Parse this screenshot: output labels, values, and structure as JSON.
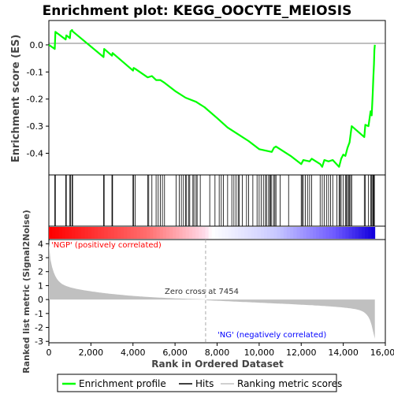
{
  "chart_data": {
    "type": "line",
    "title": "Enrichment plot: KEGG_OOCYTE_MEIOSIS",
    "xlabel": "Rank in Ordered Dataset",
    "ylabel_top": "Enrichment score (ES)",
    "ylabel_bottom": "Ranked list metric (Signal2Noise)",
    "xlim": [
      0,
      16000
    ],
    "es_ylim": [
      -0.48,
      0.09
    ],
    "metric_ylim": [
      -3.1,
      4.3
    ],
    "x_ticks": [
      0,
      2000,
      4000,
      6000,
      8000,
      10000,
      12000,
      14000,
      16000
    ],
    "x_tick_labels": [
      "0",
      "2,000",
      "4,000",
      "6,000",
      "8,000",
      "10,000",
      "12,000",
      "14,000",
      "16,000"
    ],
    "es_ticks": [
      0.0,
      -0.1,
      -0.2,
      -0.3,
      -0.4
    ],
    "es_tick_labels": [
      "0.0",
      "-0.1",
      "-0.2",
      "-0.3",
      "-0.4"
    ],
    "metric_ticks": [
      4,
      3,
      2,
      1,
      0,
      -1,
      -2,
      -3
    ],
    "metric_tick_labels": [
      "4",
      "3",
      "2",
      "1",
      "0",
      "-1",
      "-2",
      "-3"
    ],
    "n_genes": 15500,
    "zero_cross": 7454,
    "zero_cross_label": "Zero cross at 7454",
    "pos_label": "'NGP' (positively correlated)",
    "neg_label": "'NG' (negatively correlated)",
    "series": [
      {
        "name": "Enrichment profile",
        "color": "#00ff00",
        "x": [
          0,
          280,
          310,
          800,
          830,
          1000,
          1030,
          1100,
          1130,
          2600,
          2630,
          3000,
          3030,
          4000,
          4030,
          4100,
          4700,
          4900,
          5100,
          5300,
          5500,
          6000,
          6500,
          7000,
          7400,
          8000,
          8500,
          9000,
          9500,
          10000,
          10300,
          10600,
          10700,
          10800,
          11500,
          12000,
          12100,
          12400,
          12500,
          12900,
          13000,
          13100,
          13300,
          13500,
          13800,
          13900,
          14000,
          14100,
          14200,
          14300,
          14400,
          15000,
          15050,
          15200,
          15300,
          15350,
          15400,
          15430,
          15460,
          15480,
          15500
        ],
        "y": [
          0.0,
          -0.015,
          0.048,
          0.02,
          0.035,
          0.025,
          0.05,
          0.055,
          0.05,
          -0.045,
          -0.015,
          -0.04,
          -0.03,
          -0.095,
          -0.085,
          -0.088,
          -0.12,
          -0.115,
          -0.13,
          -0.13,
          -0.14,
          -0.17,
          -0.195,
          -0.21,
          -0.23,
          -0.27,
          -0.305,
          -0.33,
          -0.355,
          -0.385,
          -0.39,
          -0.395,
          -0.38,
          -0.375,
          -0.41,
          -0.44,
          -0.425,
          -0.43,
          -0.42,
          -0.44,
          -0.45,
          -0.425,
          -0.43,
          -0.425,
          -0.45,
          -0.42,
          -0.405,
          -0.41,
          -0.38,
          -0.36,
          -0.3,
          -0.34,
          -0.295,
          -0.3,
          -0.245,
          -0.26,
          -0.18,
          -0.12,
          -0.07,
          -0.02,
          0.0
        ]
      },
      {
        "name": "Hits"
      },
      {
        "name": "Ranking metric scores"
      }
    ],
    "hits": [
      280,
      310,
      800,
      830,
      1000,
      1030,
      1100,
      1130,
      2600,
      2630,
      3000,
      3030,
      4000,
      4030,
      4100,
      4700,
      4750,
      4900,
      5100,
      5200,
      5300,
      5400,
      5500,
      6050,
      6200,
      6300,
      6400,
      6500,
      6550,
      6650,
      6700,
      6850,
      6900,
      7000,
      7050,
      7200,
      7650,
      7900,
      8100,
      8200,
      8300,
      8500,
      8700,
      8800,
      8900,
      9000,
      9050,
      9200,
      9400,
      9500,
      9700,
      9900,
      10000,
      10100,
      10200,
      10300,
      10350,
      10450,
      10500,
      10550,
      10600,
      10700,
      10750,
      10800,
      11000,
      11400,
      12000,
      12050,
      12100,
      12200,
      12300,
      12400,
      12500,
      12900,
      13000,
      13100,
      13200,
      13300,
      13400,
      13500,
      13700,
      13800,
      13850,
      13900,
      14000,
      14100,
      14150,
      14200,
      14250,
      14300,
      14350,
      14400,
      15000,
      15050,
      15200,
      15300,
      15350,
      15400,
      15430,
      15460,
      15480
    ]
  }
}
